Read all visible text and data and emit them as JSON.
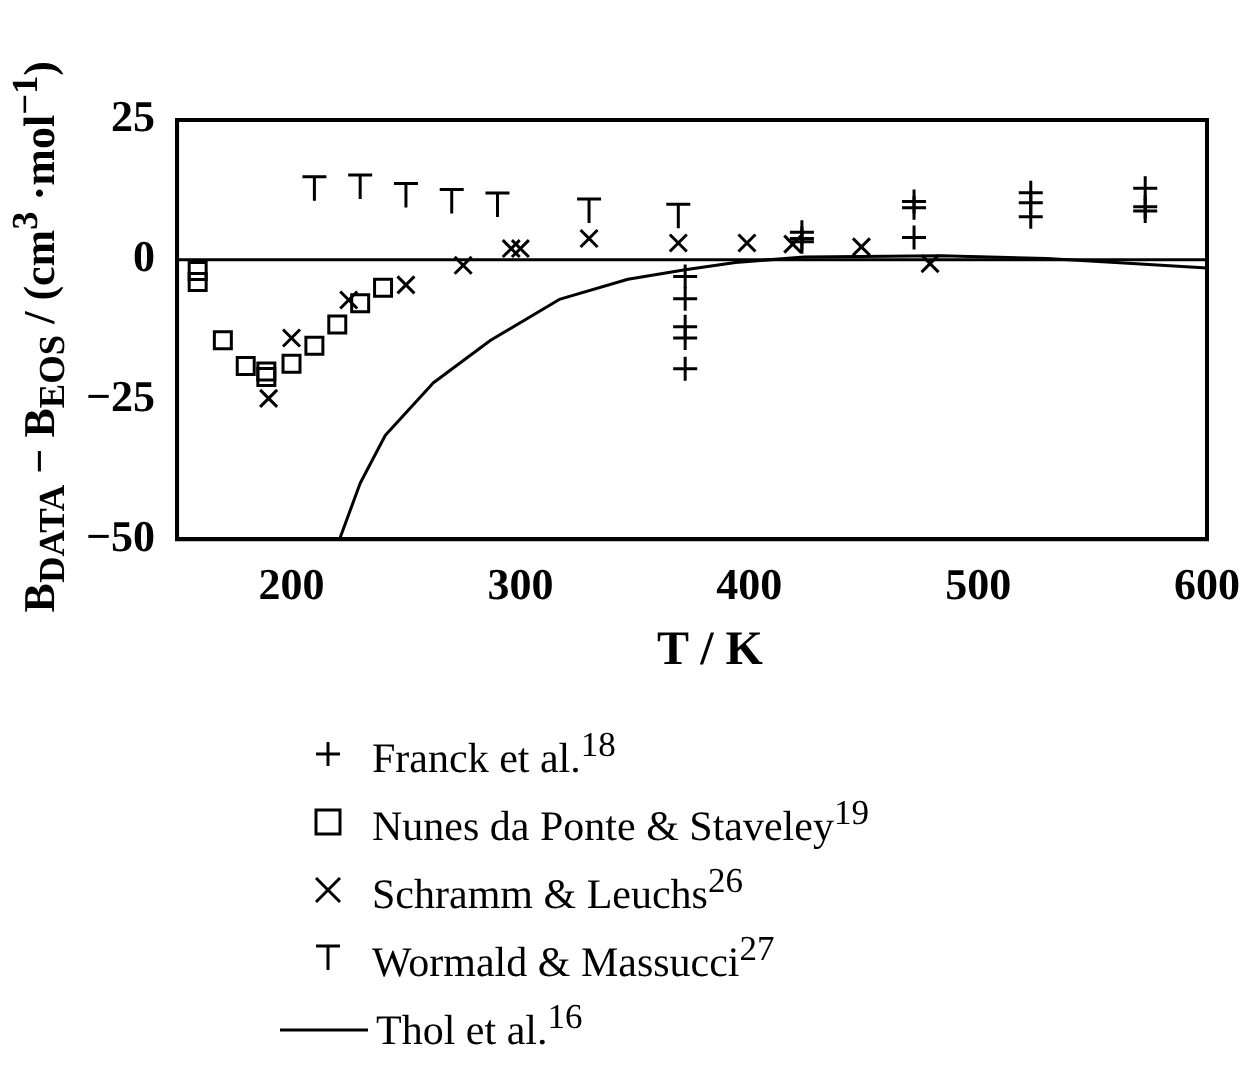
{
  "chart_data": {
    "type": "scatter",
    "xlabel": "T / K",
    "ylabel": "B$_{DATA}$ − B$_{EOS}$ / (cm$^{3}$ ·mol$^{−1}$)",
    "xlim": [
      150,
      600
    ],
    "xticks": [
      200,
      300,
      400,
      500,
      600
    ],
    "ylim": [
      -50,
      25
    ],
    "yticks": [
      -50,
      -25,
      0,
      25
    ],
    "grid": false,
    "legend": "bottom",
    "ref_lines": [
      {
        "axis": "y",
        "value": 0,
        "color": "#000000"
      }
    ],
    "series": [
      {
        "name": "Franck et al.$^{18}$",
        "color": "#000000",
        "marker": "cross",
        "x": [
          372,
          372,
          372,
          372,
          372,
          423,
          423,
          423,
          472,
          472,
          472,
          523,
          523,
          523,
          573,
          573,
          573
        ],
        "values": [
          -3,
          -7,
          -12,
          -14,
          -19.5,
          4.9,
          3.8,
          3.2,
          10.4,
          9.3,
          4,
          12,
          10.2,
          7.7,
          12.8,
          9.5,
          8.7
        ]
      },
      {
        "name": "Nunes da Ponte & Staveley$^{19}$",
        "color": "#000000",
        "marker": "square",
        "x": [
          159,
          159,
          170,
          180,
          189,
          189,
          200,
          210,
          220,
          230,
          240
        ],
        "values": [
          -2,
          -4,
          -14.4,
          -19,
          -20,
          -21,
          -18.6,
          -15.4,
          -11.6,
          -7.8,
          -5
        ]
      },
      {
        "name": "Schramm & Leuchs$^{26}$",
        "color": "#000000",
        "marker": "x",
        "x": [
          190,
          200,
          225,
          250,
          275,
          296,
          300,
          330,
          369,
          399,
          419,
          449,
          479
        ],
        "values": [
          -24.8,
          -14,
          -7.2,
          -4.5,
          -1,
          2,
          2,
          3.8,
          3,
          3,
          2.8,
          2.3,
          -0.7
        ]
      },
      {
        "name": "Wormald & Massucci$^{27}$",
        "color": "#000000",
        "x": [
          210,
          230,
          250,
          270,
          290,
          330,
          369
        ],
        "values": [
          12.7,
          13,
          11.5,
          10.4,
          9.8,
          8.7,
          7.8
        ]
      },
      {
        "name": "Thol et al.$^{16}$",
        "color": "#000000",
        "type": "line",
        "marker": "none",
        "x": [
          221,
          230,
          241,
          262,
          287,
          317,
          347,
          372,
          394,
          424,
          484,
          530,
          560,
          600
        ],
        "values": [
          -50,
          -40,
          -31.4,
          -22,
          -14.4,
          -7.1,
          -3.5,
          -1.8,
          -0.5,
          0.5,
          0.7,
          0.2,
          -0.5,
          -1.5
        ]
      }
    ]
  }
}
